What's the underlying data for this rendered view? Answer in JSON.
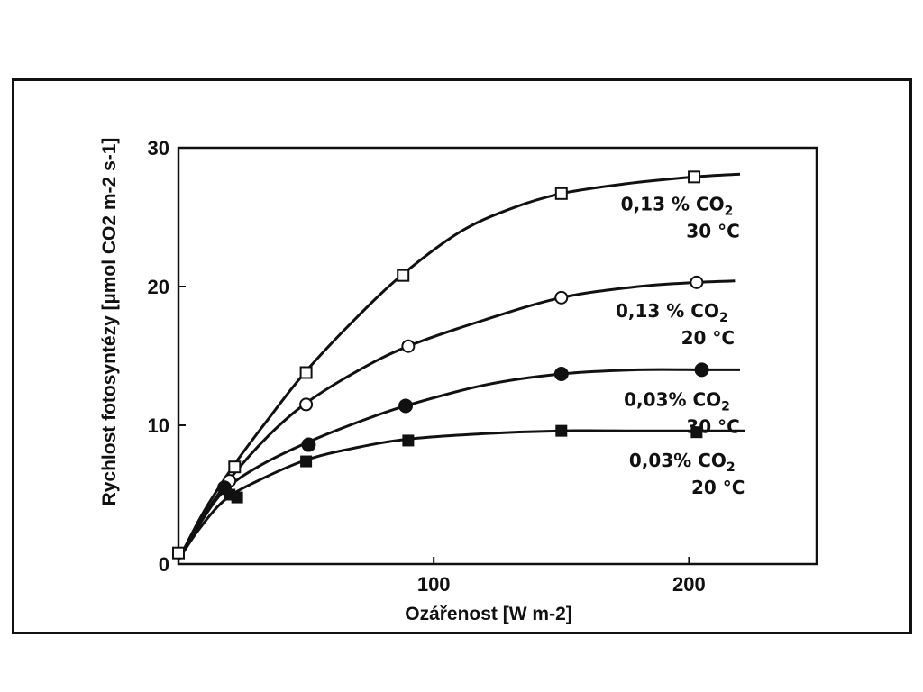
{
  "chart_data": {
    "type": "line",
    "xlabel": "Ozářenost  [W m-2]",
    "ylabel": "Rychlost fotosyntézy [µmol CO2 m-2 s-1]",
    "xlim": [
      0,
      250
    ],
    "ylim": [
      0,
      30
    ],
    "x_ticks": [
      "100",
      "200"
    ],
    "y_ticks": [
      "0",
      "10",
      "20",
      "30"
    ],
    "grid": false,
    "series": [
      {
        "name": "0,13% CO2 30°C",
        "marker": "open-square",
        "points": [
          [
            0,
            0.8
          ],
          [
            22,
            7.0
          ],
          [
            50,
            13.8
          ],
          [
            88,
            20.8
          ],
          [
            150,
            26.7
          ],
          [
            202,
            27.9
          ]
        ],
        "curve": [
          [
            0,
            0.3
          ],
          [
            10,
            3.8
          ],
          [
            22,
            7.2
          ],
          [
            35,
            10.4
          ],
          [
            50,
            13.9
          ],
          [
            70,
            17.8
          ],
          [
            88,
            20.9
          ],
          [
            110,
            23.9
          ],
          [
            130,
            25.6
          ],
          [
            150,
            26.7
          ],
          [
            175,
            27.4
          ],
          [
            202,
            27.9
          ],
          [
            220,
            28.1
          ]
        ],
        "label_lines": [
          "0,13 % CO2",
          "30 °C"
        ]
      },
      {
        "name": "0,13% CO2 20°C",
        "marker": "open-circle",
        "points": [
          [
            20,
            6.0
          ],
          [
            50,
            11.5
          ],
          [
            90,
            15.7
          ],
          [
            150,
            19.2
          ],
          [
            203,
            20.3
          ]
        ],
        "curve": [
          [
            0,
            0.3
          ],
          [
            10,
            3.5
          ],
          [
            20,
            6.1
          ],
          [
            35,
            9.2
          ],
          [
            50,
            11.6
          ],
          [
            70,
            13.9
          ],
          [
            90,
            15.7
          ],
          [
            120,
            17.6
          ],
          [
            150,
            19.2
          ],
          [
            180,
            20.0
          ],
          [
            203,
            20.3
          ],
          [
            218,
            20.4
          ]
        ],
        "label_lines": [
          "0,13 % CO2",
          "20 °C"
        ]
      },
      {
        "name": "0,03% CO2 30°C",
        "marker": "filled-circle",
        "points": [
          [
            18,
            5.5
          ],
          [
            51,
            8.6
          ],
          [
            89,
            11.4
          ],
          [
            150,
            13.7
          ],
          [
            205,
            14.0
          ]
        ],
        "curve": [
          [
            0,
            0.3
          ],
          [
            8,
            2.8
          ],
          [
            18,
            5.3
          ],
          [
            32,
            7.1
          ],
          [
            51,
            8.8
          ],
          [
            70,
            10.2
          ],
          [
            89,
            11.4
          ],
          [
            120,
            12.9
          ],
          [
            150,
            13.7
          ],
          [
            180,
            14.0
          ],
          [
            205,
            14.0
          ],
          [
            220,
            14.0
          ]
        ],
        "label_lines": [
          "0,03% CO2",
          "30 °C"
        ]
      },
      {
        "name": "0,03% CO2 20°C",
        "marker": "filled-square",
        "points": [
          [
            20,
            5.0
          ],
          [
            23,
            4.8
          ],
          [
            50,
            7.4
          ],
          [
            90,
            8.9
          ],
          [
            150,
            9.6
          ],
          [
            203,
            9.5
          ]
        ],
        "curve": [
          [
            0,
            0.3
          ],
          [
            8,
            2.5
          ],
          [
            18,
            4.6
          ],
          [
            30,
            5.9
          ],
          [
            50,
            7.5
          ],
          [
            70,
            8.4
          ],
          [
            90,
            9.0
          ],
          [
            120,
            9.4
          ],
          [
            150,
            9.6
          ],
          [
            180,
            9.6
          ],
          [
            203,
            9.6
          ],
          [
            222,
            9.6
          ]
        ],
        "label_lines": [
          "0,03% CO2",
          "20 °C"
        ]
      }
    ]
  }
}
